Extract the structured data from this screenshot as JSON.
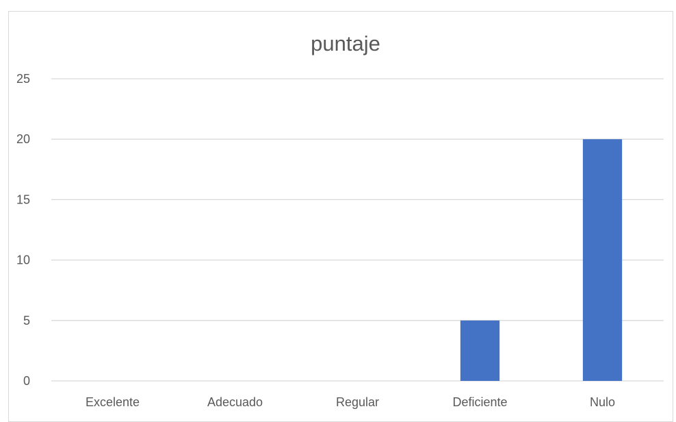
{
  "chart_data": {
    "type": "bar",
    "title": "puntaje",
    "categories": [
      "Excelente",
      "Adecuado",
      "Regular",
      "Deficiente",
      "Nulo"
    ],
    "series": [
      {
        "values": [
          0,
          0,
          0,
          5,
          20
        ],
        "color": "#4472c4"
      }
    ],
    "xlabel": "",
    "ylabel": "",
    "ylim": [
      0,
      25
    ],
    "yticks": [
      0,
      5,
      10,
      15,
      20,
      25
    ],
    "grid": true,
    "legend": "none"
  }
}
